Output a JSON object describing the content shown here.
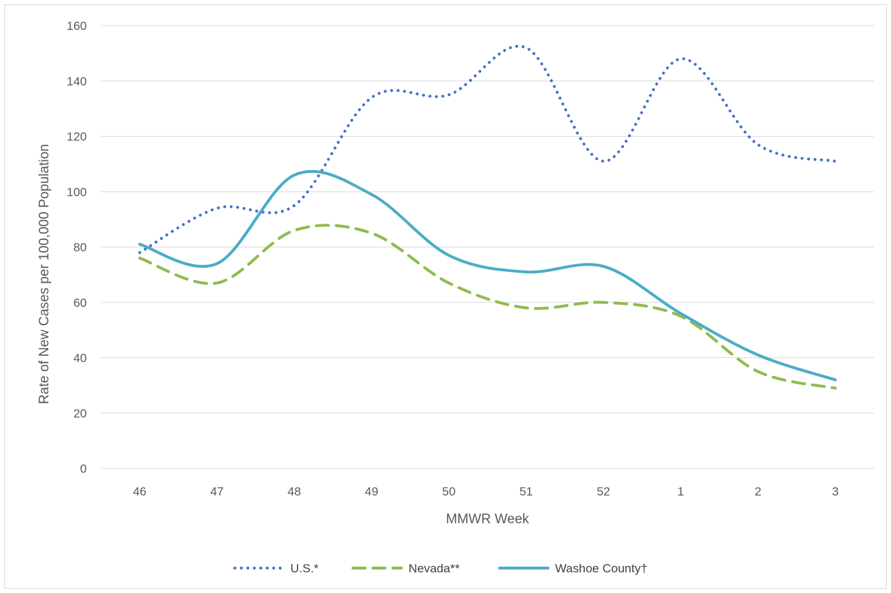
{
  "chart_data": {
    "type": "line",
    "title": "",
    "xlabel": "MMWR Week",
    "ylabel": "Rate of New Cases per 100,000 Population",
    "categories": [
      "46",
      "47",
      "48",
      "49",
      "50",
      "51",
      "52",
      "1",
      "2",
      "3"
    ],
    "ylim": [
      0,
      160
    ],
    "yticks": [
      0,
      20,
      40,
      60,
      80,
      100,
      120,
      140,
      160
    ],
    "grid": true,
    "legend_position": "bottom",
    "smooth": true,
    "series": [
      {
        "name": "U.S.*",
        "values": [
          78,
          94,
          95,
          134,
          135,
          152,
          111,
          148,
          117,
          111
        ],
        "color": "#4472c4",
        "style": "dotted"
      },
      {
        "name": "Nevada**",
        "values": [
          76,
          67,
          86,
          85,
          67,
          58,
          60,
          55,
          35,
          29
        ],
        "color": "#8fbc4f",
        "style": "dashed"
      },
      {
        "name": "Washoe County†",
        "values": [
          81,
          74,
          106,
          99,
          77,
          71,
          73,
          56,
          41,
          32
        ],
        "color": "#4bacc6",
        "style": "solid"
      }
    ]
  }
}
